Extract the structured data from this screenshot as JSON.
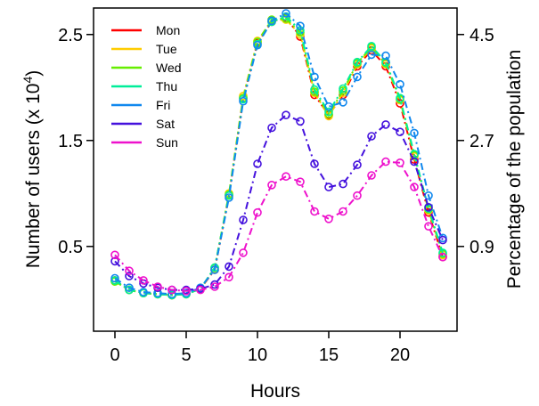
{
  "chart_data": {
    "type": "line",
    "xlabel": "Hours",
    "ylabel": "Number of users (x 10",
    "ylabel_exp": "4",
    "ylabel_close": ")",
    "y2label": "Percentage of the population",
    "xlim": [
      -1.5,
      24
    ],
    "ylim": [
      -0.3,
      2.75
    ],
    "x_ticks": [
      0,
      5,
      10,
      15,
      20
    ],
    "x_tick_labels": [
      "0",
      "5",
      "10",
      "15",
      "20"
    ],
    "y_ticks": [
      0.5,
      1.5,
      2.5
    ],
    "y_tick_labels": [
      "0.5",
      "1.5",
      "2.5"
    ],
    "y2_ticks": [
      0.5,
      1.5,
      2.5
    ],
    "y2_tick_labels": [
      "0.9",
      "2.7",
      "4.5"
    ],
    "legend_position": "top-left",
    "x": [
      0,
      1,
      2,
      3,
      4,
      5,
      6,
      7,
      8,
      9,
      10,
      11,
      12,
      13,
      14,
      15,
      16,
      17,
      18,
      19,
      20,
      21,
      22,
      23
    ],
    "series": [
      {
        "name": "Mon",
        "color": "#ff0000",
        "values": [
          0.18,
          0.09,
          0.06,
          0.05,
          0.04,
          0.05,
          0.1,
          0.28,
          0.98,
          1.9,
          2.42,
          2.62,
          2.66,
          2.48,
          1.93,
          1.74,
          1.93,
          2.2,
          2.35,
          2.2,
          1.85,
          1.32,
          0.82,
          0.4
        ]
      },
      {
        "name": "Tue",
        "color": "#ffcc00",
        "values": [
          0.17,
          0.09,
          0.06,
          0.05,
          0.04,
          0.05,
          0.1,
          0.29,
          1.0,
          1.92,
          2.44,
          2.63,
          2.64,
          2.5,
          1.95,
          1.73,
          1.95,
          2.22,
          2.37,
          2.22,
          1.88,
          1.35,
          0.84,
          0.42
        ]
      },
      {
        "name": "Wed",
        "color": "#66ee00",
        "values": [
          0.17,
          0.09,
          0.06,
          0.05,
          0.04,
          0.05,
          0.1,
          0.3,
          0.99,
          1.9,
          2.43,
          2.64,
          2.65,
          2.52,
          1.96,
          1.75,
          1.97,
          2.23,
          2.38,
          2.23,
          1.89,
          1.36,
          0.85,
          0.43
        ]
      },
      {
        "name": "Thu",
        "color": "#00ee99",
        "values": [
          0.18,
          0.09,
          0.06,
          0.05,
          0.04,
          0.05,
          0.1,
          0.3,
          0.98,
          1.89,
          2.41,
          2.62,
          2.67,
          2.54,
          1.98,
          1.77,
          1.99,
          2.24,
          2.39,
          2.24,
          1.9,
          1.37,
          0.86,
          0.44
        ]
      },
      {
        "name": "Fri",
        "color": "#1188ee",
        "values": [
          0.2,
          0.11,
          0.07,
          0.06,
          0.05,
          0.06,
          0.11,
          0.28,
          0.96,
          1.87,
          2.4,
          2.63,
          2.7,
          2.58,
          2.1,
          1.82,
          1.86,
          2.1,
          2.31,
          2.3,
          2.03,
          1.57,
          0.98,
          0.58
        ]
      },
      {
        "name": "Sat",
        "color": "#4411dd",
        "values": [
          0.36,
          0.22,
          0.15,
          0.11,
          0.09,
          0.09,
          0.1,
          0.14,
          0.31,
          0.75,
          1.28,
          1.62,
          1.74,
          1.68,
          1.28,
          1.06,
          1.09,
          1.27,
          1.54,
          1.65,
          1.58,
          1.3,
          0.87,
          0.56
        ]
      },
      {
        "name": "Sun",
        "color": "#ee11cc",
        "values": [
          0.42,
          0.27,
          0.18,
          0.12,
          0.09,
          0.08,
          0.09,
          0.12,
          0.21,
          0.44,
          0.82,
          1.08,
          1.16,
          1.11,
          0.83,
          0.76,
          0.83,
          0.98,
          1.17,
          1.3,
          1.29,
          1.06,
          0.69,
          0.4
        ]
      }
    ]
  }
}
